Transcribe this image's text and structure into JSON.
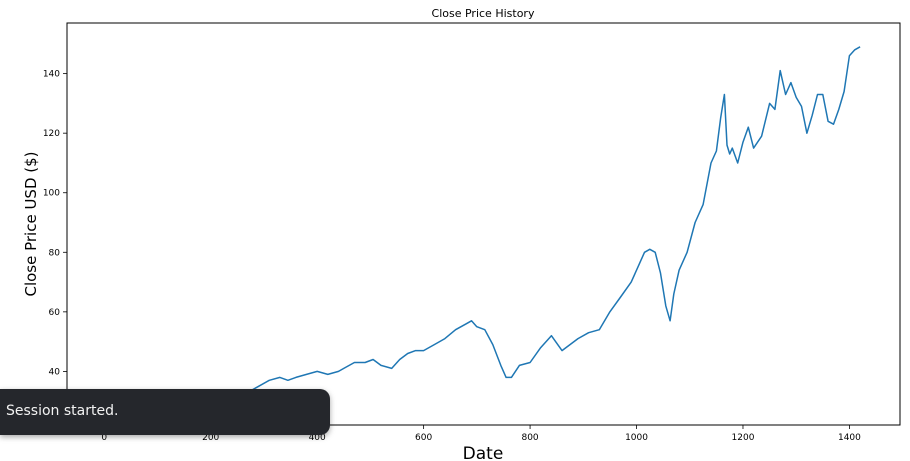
{
  "chart_data": {
    "type": "line",
    "title": "Close Price History",
    "xlabel": "Date",
    "ylabel": "Close Price USD ($)",
    "xlim": [
      -70,
      1495
    ],
    "ylim": [
      22,
      157
    ],
    "xticks": [
      0,
      200,
      400,
      600,
      800,
      1000,
      1200,
      1400
    ],
    "yticks": [
      40,
      60,
      80,
      100,
      120,
      140
    ],
    "grid": false,
    "line_color": "#1f77b4",
    "series": [
      {
        "x": [
          0,
          40,
          80,
          120,
          160,
          190,
          200,
          215,
          230,
          250,
          270,
          290,
          310,
          330,
          345,
          360,
          380,
          400,
          420,
          440,
          450,
          470,
          490,
          505,
          520,
          540,
          555,
          570,
          585,
          600,
          620,
          640,
          660,
          680,
          690,
          700,
          715,
          730,
          745,
          755,
          765,
          780,
          800,
          820,
          840,
          860,
          875,
          890,
          910,
          930,
          950,
          970,
          990,
          1005,
          1015,
          1025,
          1035,
          1045,
          1055,
          1063,
          1070,
          1080,
          1095,
          1110,
          1125,
          1140,
          1150,
          1158,
          1165,
          1170,
          1175,
          1180,
          1190,
          1200,
          1210,
          1220,
          1235,
          1250,
          1260,
          1270,
          1280,
          1290,
          1300,
          1310,
          1320,
          1330,
          1340,
          1350,
          1360,
          1370,
          1380,
          1390,
          1400,
          1410,
          1420
        ],
        "y": [
          24,
          24,
          25,
          25,
          26,
          27,
          28,
          28,
          27,
          29,
          33,
          35,
          37,
          38,
          37,
          38,
          39,
          40,
          39,
          40,
          41,
          43,
          43,
          44,
          42,
          41,
          44,
          46,
          47,
          47,
          49,
          51,
          54,
          56,
          57,
          55,
          54,
          49,
          42,
          38,
          38,
          42,
          43,
          48,
          52,
          47,
          49,
          51,
          53,
          54,
          60,
          65,
          70,
          76,
          80,
          81,
          80,
          73,
          62,
          57,
          66,
          74,
          80,
          90,
          96,
          110,
          114,
          125,
          133,
          116,
          113,
          115,
          110,
          117,
          122,
          115,
          119,
          130,
          128,
          141,
          133,
          137,
          132,
          129,
          120,
          126,
          133,
          133,
          124,
          123,
          128,
          134,
          146,
          148,
          149
        ]
      }
    ]
  },
  "toast": {
    "message": "Session started."
  }
}
